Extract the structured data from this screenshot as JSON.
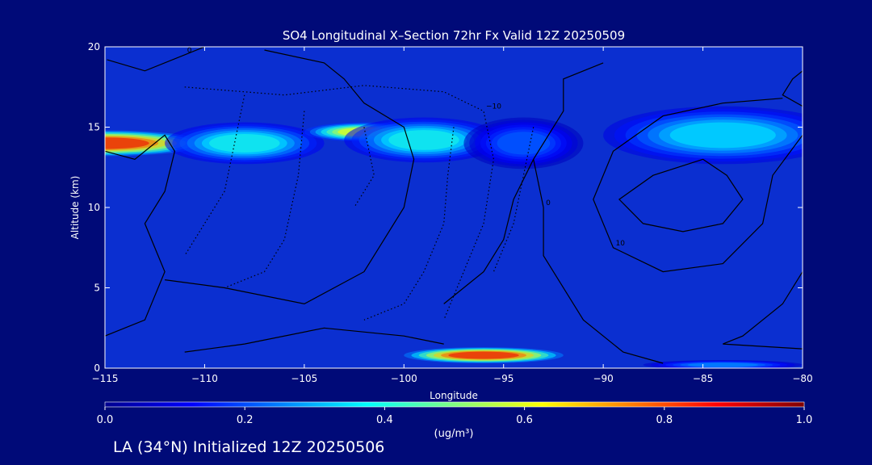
{
  "chart_data": {
    "type": "heatmap",
    "title": "SO4 Longitudinal X–Section 72hr  Fx Valid 12Z 20250509",
    "xlabel": "Longitude",
    "ylabel": "Altitude (km)",
    "xlim": [
      -115,
      -80
    ],
    "ylim": [
      0,
      20
    ],
    "x_ticks": [
      -115,
      -110,
      -105,
      -100,
      -95,
      -90,
      -85,
      -80
    ],
    "x_tick_labels": [
      "−115",
      "−110",
      "−105",
      "−100",
      "−95",
      "−90",
      "−85",
      "−80"
    ],
    "y_ticks": [
      0,
      5,
      10,
      15,
      20
    ],
    "y_tick_labels": [
      "0",
      "5",
      "10",
      "15",
      "20"
    ],
    "colorbar": {
      "min": 0.0,
      "max": 1.0,
      "ticks": [
        0.0,
        0.2,
        0.4,
        0.6,
        0.8,
        1.0
      ],
      "tick_labels": [
        "0.0",
        "0.2",
        "0.4",
        "0.6",
        "0.8",
        "1.0"
      ],
      "units": "(ug/m³)",
      "colormap": "jet"
    },
    "field_features": [
      {
        "lon_center": -115,
        "lon_halfwidth": 5,
        "alt_center": 14,
        "alt_halfwidth": 0.8,
        "value": 1.0
      },
      {
        "lon_center": -108,
        "lon_halfwidth": 4,
        "alt_center": 14,
        "alt_halfwidth": 1.3,
        "value": 0.45
      },
      {
        "lon_center": -102,
        "lon_halfwidth": 3,
        "alt_center": 14.7,
        "alt_halfwidth": 0.6,
        "value": 0.7
      },
      {
        "lon_center": -99,
        "lon_halfwidth": 4,
        "alt_center": 14.2,
        "alt_halfwidth": 1.4,
        "value": 0.45
      },
      {
        "lon_center": -94,
        "lon_halfwidth": 3,
        "alt_center": 14,
        "alt_halfwidth": 1.6,
        "value": 0.25
      },
      {
        "lon_center": -84,
        "lon_halfwidth": 6,
        "alt_center": 14.5,
        "alt_halfwidth": 1.8,
        "value": 0.4
      },
      {
        "lon_center": -96,
        "lon_halfwidth": 4,
        "alt_center": 0.8,
        "alt_halfwidth": 0.5,
        "value": 1.0
      },
      {
        "lon_center": -84,
        "lon_halfwidth": 4,
        "alt_center": 0.2,
        "alt_halfwidth": 0.3,
        "value": 0.3
      }
    ],
    "contours": [
      {
        "style": "solid",
        "label": "0",
        "points": [
          [
            -114.9,
            19.2
          ],
          [
            -113,
            18.5
          ],
          [
            -111,
            19.5
          ],
          [
            -110,
            20
          ]
        ]
      },
      {
        "style": "solid",
        "label": "",
        "points": [
          [
            -115,
            13.5
          ],
          [
            -113.5,
            13
          ],
          [
            -112,
            14.5
          ],
          [
            -111.5,
            13.5
          ],
          [
            -112,
            11
          ],
          [
            -113,
            9
          ],
          [
            -112,
            6
          ],
          [
            -113,
            3
          ],
          [
            -115,
            2
          ]
        ]
      },
      {
        "style": "solid",
        "label": "",
        "points": [
          [
            -111,
            1
          ],
          [
            -108,
            1.5
          ],
          [
            -104,
            2.5
          ],
          [
            -100,
            2
          ],
          [
            -98,
            1.5
          ]
        ]
      },
      {
        "style": "solid",
        "label": "",
        "points": [
          [
            -107,
            19.8
          ],
          [
            -104,
            19
          ],
          [
            -103,
            18
          ],
          [
            -102,
            16.5
          ],
          [
            -100,
            15
          ],
          [
            -99.5,
            13
          ],
          [
            -100,
            10
          ],
          [
            -101,
            8
          ],
          [
            -102,
            6
          ],
          [
            -105,
            4
          ],
          [
            -109,
            5
          ],
          [
            -112,
            5.5
          ]
        ]
      },
      {
        "style": "solid",
        "label": "",
        "points": [
          [
            -98,
            4
          ],
          [
            -96,
            6
          ],
          [
            -95,
            8
          ],
          [
            -94.5,
            10.5
          ],
          [
            -93.5,
            13
          ]
        ]
      },
      {
        "style": "solid",
        "label": "0",
        "points": [
          [
            -90,
            19
          ],
          [
            -92,
            18
          ],
          [
            -92,
            16
          ],
          [
            -93.5,
            13
          ],
          [
            -93,
            10
          ],
          [
            -93,
            7
          ],
          [
            -91,
            3
          ],
          [
            -89,
            1
          ],
          [
            -87,
            0.3
          ]
        ]
      },
      {
        "style": "solid",
        "label": "10",
        "points": [
          [
            -81,
            16.8
          ],
          [
            -84,
            16.5
          ],
          [
            -87,
            15.7
          ],
          [
            -89.5,
            13.5
          ],
          [
            -90.5,
            10.5
          ],
          [
            -89.5,
            7.5
          ],
          [
            -87,
            6
          ],
          [
            -84,
            6.5
          ],
          [
            -82,
            9
          ],
          [
            -81.5,
            12
          ],
          [
            -80,
            14.5
          ]
        ]
      },
      {
        "style": "solid",
        "label": "",
        "points": [
          [
            -85,
            13
          ],
          [
            -87.5,
            12
          ],
          [
            -89.2,
            10.5
          ],
          [
            -88,
            9
          ],
          [
            -86,
            8.5
          ],
          [
            -84,
            9
          ],
          [
            -83,
            10.5
          ],
          [
            -83.8,
            12
          ],
          [
            -85,
            13
          ]
        ]
      },
      {
        "style": "solid",
        "label": "",
        "points": [
          [
            -80,
            16.3
          ],
          [
            -81,
            17
          ],
          [
            -80.5,
            18
          ],
          [
            -80,
            18.5
          ]
        ]
      },
      {
        "style": "solid",
        "label": "",
        "points": [
          [
            -80,
            6
          ],
          [
            -81,
            4
          ],
          [
            -83,
            2
          ],
          [
            -84,
            1.5
          ],
          [
            -80,
            1.2
          ]
        ]
      },
      {
        "style": "dotted",
        "label": "−10",
        "points": [
          [
            -111,
            17.5
          ],
          [
            -106,
            17
          ],
          [
            -102,
            17.6
          ],
          [
            -98,
            17.2
          ],
          [
            -96,
            16
          ],
          [
            -95.5,
            13
          ],
          [
            -96,
            9
          ],
          [
            -97,
            6
          ],
          [
            -98,
            3
          ]
        ]
      },
      {
        "style": "dotted",
        "label": "",
        "points": [
          [
            -108,
            17
          ],
          [
            -108.5,
            14
          ],
          [
            -109,
            11
          ],
          [
            -110,
            9
          ],
          [
            -111,
            7
          ]
        ]
      },
      {
        "style": "dotted",
        "label": "",
        "points": [
          [
            -105,
            16
          ],
          [
            -105.3,
            12
          ],
          [
            -106,
            8
          ],
          [
            -107,
            6
          ],
          [
            -109,
            5
          ]
        ]
      },
      {
        "style": "dotted",
        "label": "",
        "points": [
          [
            -102,
            15
          ],
          [
            -101.5,
            12
          ],
          [
            -102.5,
            10
          ]
        ]
      },
      {
        "style": "dotted",
        "label": "",
        "points": [
          [
            -97.5,
            15
          ],
          [
            -97.8,
            12
          ],
          [
            -98,
            9
          ],
          [
            -99,
            6
          ],
          [
            -100,
            4
          ],
          [
            -102,
            3
          ]
        ]
      },
      {
        "style": "dotted",
        "label": "",
        "points": [
          [
            -93.5,
            15
          ],
          [
            -94,
            12
          ],
          [
            -94.5,
            9
          ],
          [
            -95.5,
            6
          ]
        ]
      }
    ]
  },
  "footer": "LA (34°N) Initialized 12Z 20250506"
}
